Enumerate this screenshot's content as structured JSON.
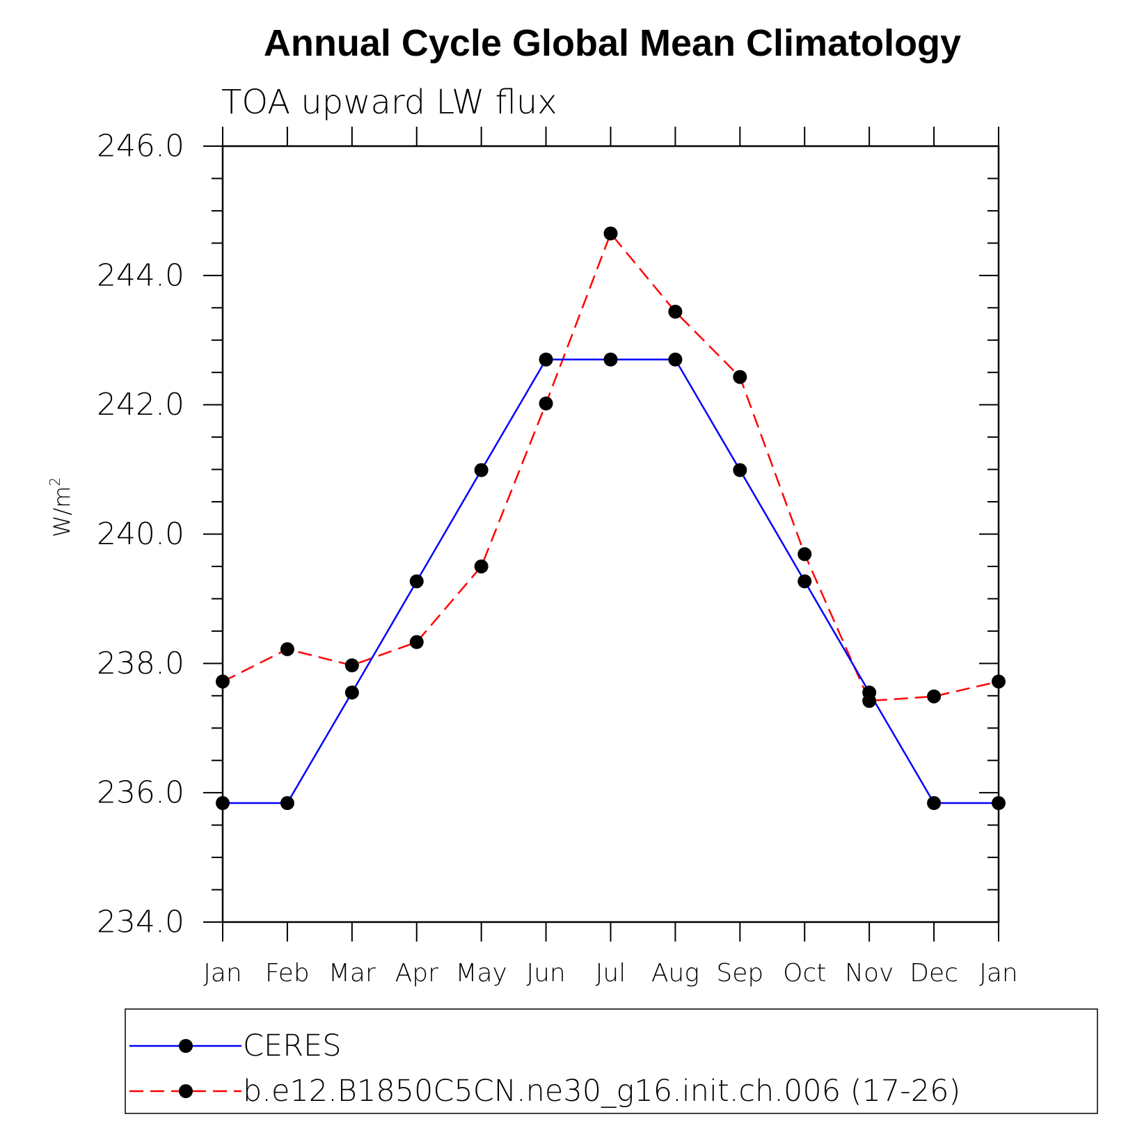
{
  "chart_data": {
    "type": "line",
    "title": "Annual Cycle Global Mean Climatology",
    "subtitle": "TOA upward LW flux",
    "ylabel": "W/m",
    "ylabel_superscript": "2",
    "xlabel": "",
    "categories": [
      "Jan",
      "Feb",
      "Mar",
      "Apr",
      "May",
      "Jun",
      "Jul",
      "Aug",
      "Sep",
      "Oct",
      "Nov",
      "Dec",
      "Jan"
    ],
    "ylim": [
      234.0,
      246.0
    ],
    "yticks": [
      "234.0",
      "236.0",
      "238.0",
      "240.0",
      "242.0",
      "244.0",
      "246.0"
    ],
    "grid": false,
    "legend_position": "bottom",
    "series": [
      {
        "name": "CERES",
        "color": "#0000ff",
        "dash": "solid",
        "values": [
          235.84,
          235.84,
          237.55,
          239.27,
          240.99,
          242.7,
          242.7,
          242.7,
          240.99,
          239.27,
          237.55,
          235.84,
          235.84
        ]
      },
      {
        "name": "b.e12.B1850C5CN.ne30_g16.init.ch.006 (17-26)",
        "color": "#ff0000",
        "dash": "dashed",
        "values": [
          237.72,
          238.22,
          237.97,
          238.33,
          239.5,
          242.02,
          244.65,
          243.44,
          242.43,
          239.69,
          237.42,
          237.49,
          237.72
        ]
      }
    ]
  }
}
